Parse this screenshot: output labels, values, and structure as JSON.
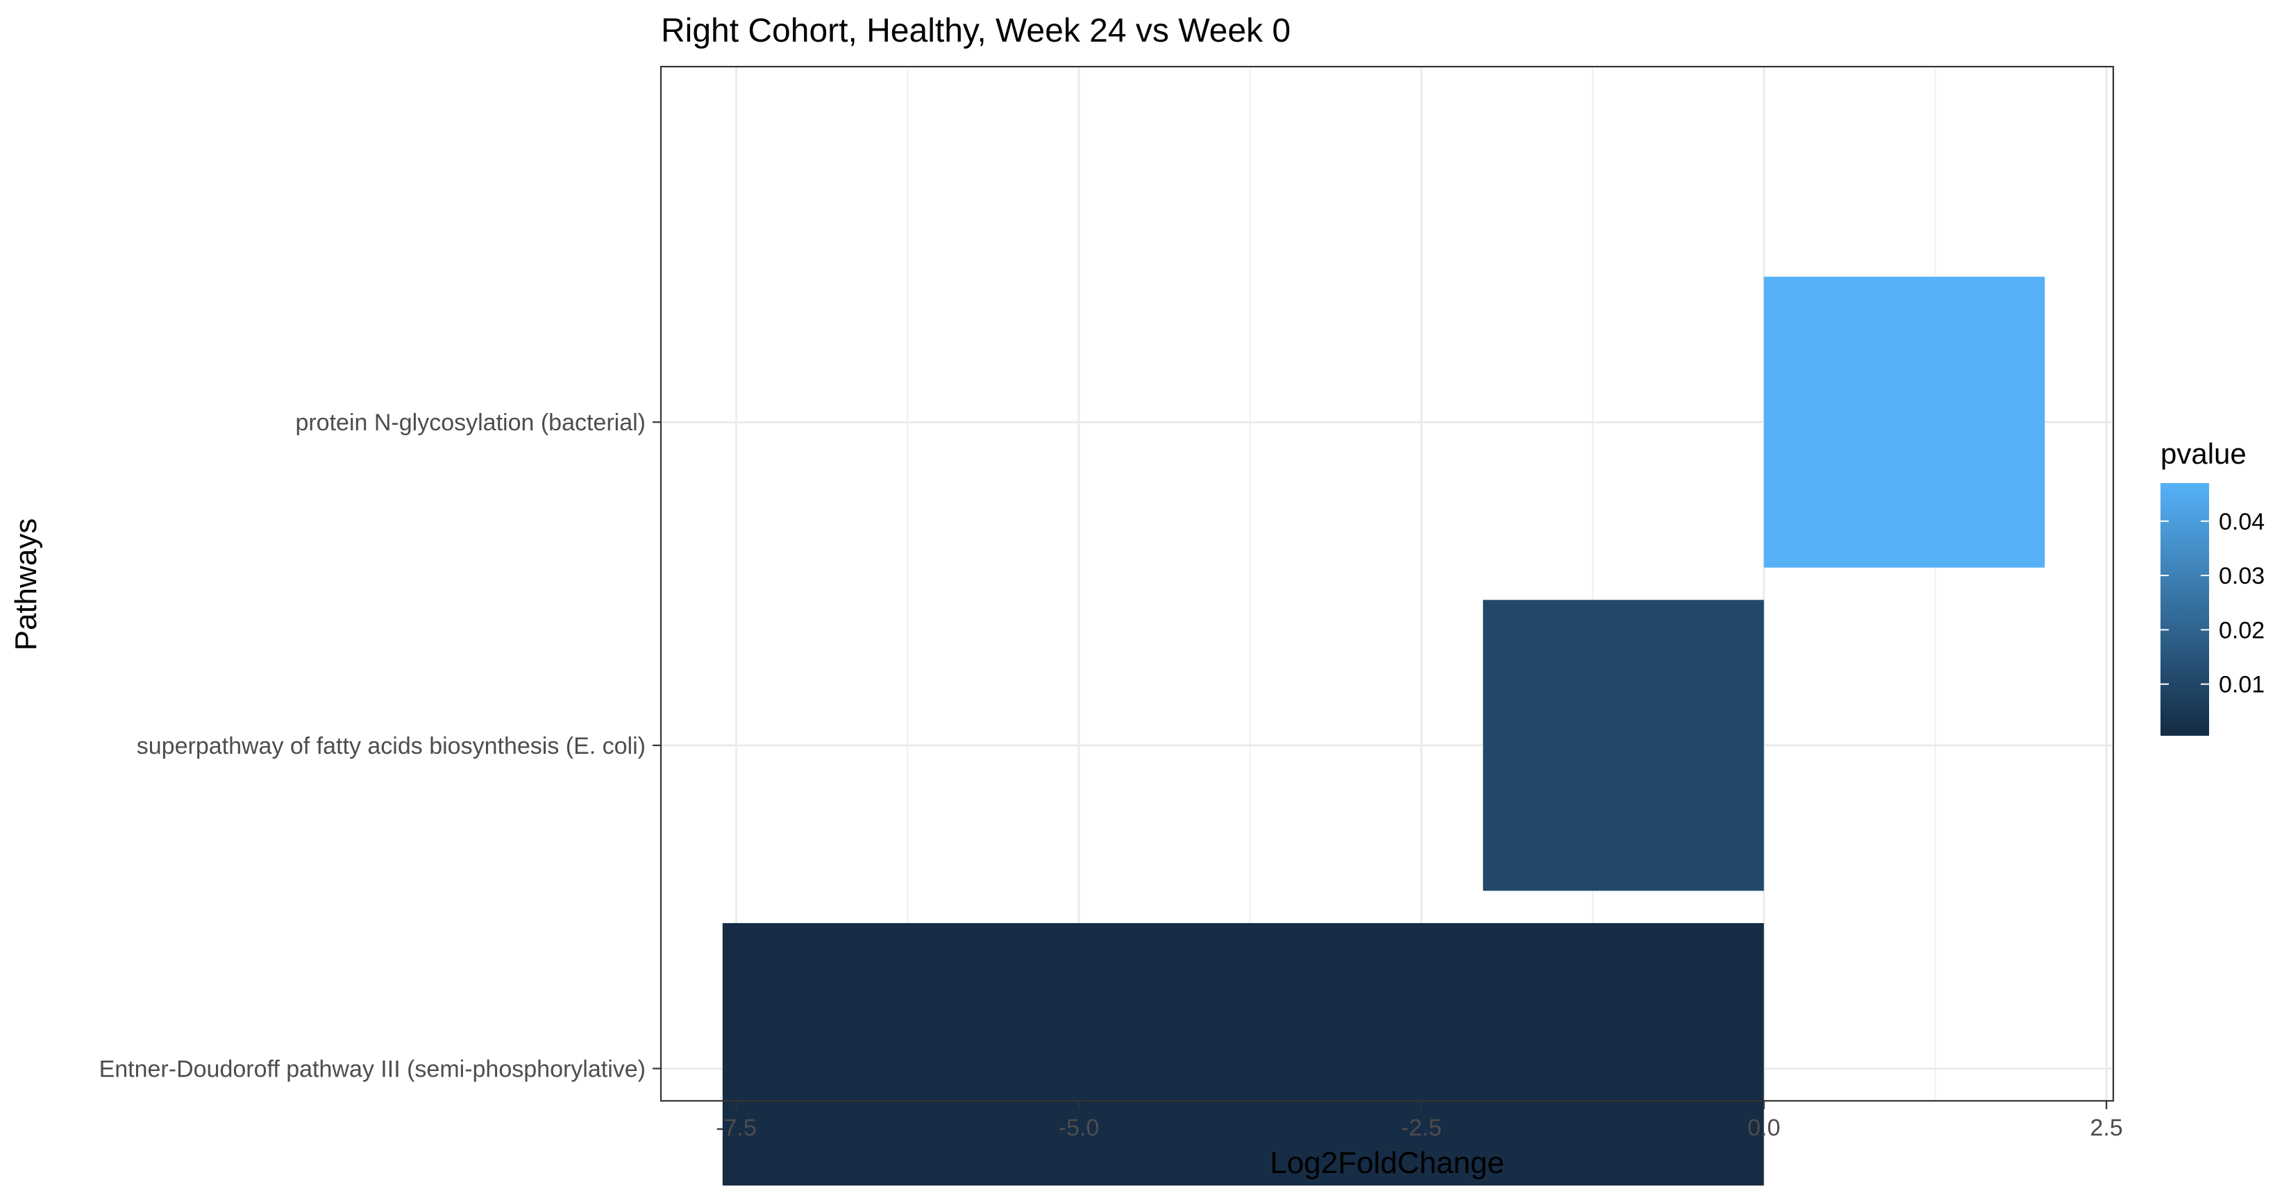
{
  "chart_data": {
    "type": "bar",
    "orientation": "horizontal",
    "title": "Right Cohort, Healthy, Week 24 vs Week 0",
    "xlabel": "Log2FoldChange",
    "ylabel": "Pathways",
    "categories": [
      "protein N-glycosylation (bacterial)",
      "superpathway of fatty acids biosynthesis (E. coli)",
      "Entner-Doudoroff pathway III (semi-phosphorylative)"
    ],
    "values": [
      2.05,
      -2.05,
      -7.6
    ],
    "pvalues": [
      0.047,
      0.018,
      0.0005
    ],
    "bar_colors": [
      "#56B1F7",
      "#214869",
      "#172C45"
    ],
    "xlim": [
      -8.05,
      2.55
    ],
    "xticks": [
      {
        "value": -7.5,
        "label": "-7.5"
      },
      {
        "value": -5.0,
        "label": "-5.0"
      },
      {
        "value": -2.5,
        "label": "-2.5"
      },
      {
        "value": 0.0,
        "label": "0.0"
      },
      {
        "value": 2.5,
        "label": "2.5"
      }
    ],
    "grid": true,
    "legend": {
      "title": "pvalue",
      "placement": "right",
      "low_color": "#132B43",
      "high_color": "#56B1F7",
      "range": [
        0.0005,
        0.047
      ],
      "ticks": [
        {
          "value": 0.04,
          "label": "0.04"
        },
        {
          "value": 0.03,
          "label": "0.03"
        },
        {
          "value": 0.02,
          "label": "0.02"
        },
        {
          "value": 0.01,
          "label": "0.01"
        }
      ]
    }
  }
}
